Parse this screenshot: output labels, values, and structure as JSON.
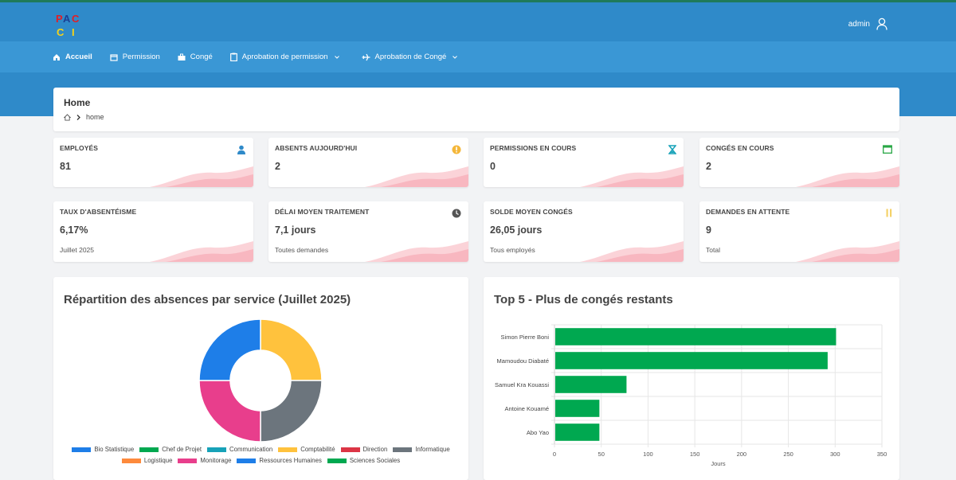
{
  "header": {
    "logo_text": "PACCI",
    "user": "admin"
  },
  "nav": [
    {
      "label": "Accueil",
      "icon": "home-icon",
      "active": true
    },
    {
      "label": "Permission",
      "icon": "calendar-icon"
    },
    {
      "label": "Congé",
      "icon": "briefcase-icon"
    },
    {
      "label": "Aprobation de permission",
      "icon": "clipboard-icon",
      "dropdown": true
    },
    {
      "label": "Aprobation de Congé",
      "icon": "plane-icon",
      "dropdown": true
    }
  ],
  "breadcrumb": {
    "title": "Home",
    "current": "home"
  },
  "kpis_row1": [
    {
      "label": "EMPLOYÉS",
      "value": "81",
      "icon": "user-icon",
      "icon_color": "#2f8ac9"
    },
    {
      "label": "ABSENTS AUJOURD'HUI",
      "value": "2",
      "icon": "alert-circle-icon",
      "icon_color": "#f4b73a"
    },
    {
      "label": "PERMISSIONS EN COURS",
      "value": "0",
      "icon": "hourglass-icon",
      "icon_color": "#17a2b8"
    },
    {
      "label": "CONGÉS EN COURS",
      "value": "2",
      "icon": "calendar-icon",
      "icon_color": "#28a745"
    }
  ],
  "kpis_row2": [
    {
      "label": "TAUX D'ABSENTÉISME",
      "value": "6,17%",
      "sub": "Juillet 2025"
    },
    {
      "label": "DÉLAI MOYEN TRAITEMENT",
      "value": "7,1 jours",
      "sub": "Toutes demandes",
      "icon": "clock-icon",
      "icon_color": "#555"
    },
    {
      "label": "SOLDE MOYEN CONGÉS",
      "value": "26,05 jours",
      "sub": "Tous employés"
    },
    {
      "label": "DEMANDES EN ATTENTE",
      "value": "9",
      "sub": "Total",
      "icon": "pause-icon",
      "icon_color": "#f4d26a"
    }
  ],
  "colors": {
    "header": "#2f8ac9",
    "nav": "#3a97d5",
    "wave": "#f8b7c0",
    "bar": "#00a850"
  },
  "chart_data": [
    {
      "type": "pie",
      "variant": "doughnut",
      "title": "Répartition des absences par service (Juillet 2025)",
      "categories": [
        "Bio Statistique",
        "Chef de Projet",
        "Communication",
        "Comptabilité",
        "Direction",
        "Informatique",
        "Logistique",
        "Monitorage",
        "Ressources Humaines",
        "Sciences Sociales"
      ],
      "colors": [
        "#1e7ee8",
        "#00a850",
        "#17a2b8",
        "#ffc23d",
        "#dc3545",
        "#6c757d",
        "#fd8a3c",
        "#e83e8c",
        "#1e7ee8",
        "#00a850"
      ],
      "values": [
        1,
        0,
        0,
        1,
        0,
        1,
        0,
        1,
        0,
        0
      ],
      "legend": "bottom"
    },
    {
      "type": "bar",
      "orientation": "horizontal",
      "title": "Top 5 - Plus de congés restants",
      "categories": [
        "Simon Pierre Boni",
        "Mamoudou Diabaté",
        "Samuel Kra Kouassi",
        "Antoine Kouamé",
        "Abo Yao"
      ],
      "values": [
        301,
        292,
        77,
        48,
        48
      ],
      "xlabel": "Jours",
      "xlim": [
        0,
        350
      ],
      "xticks": [
        0,
        50,
        100,
        150,
        200,
        250,
        300,
        350
      ],
      "grid": true
    }
  ]
}
